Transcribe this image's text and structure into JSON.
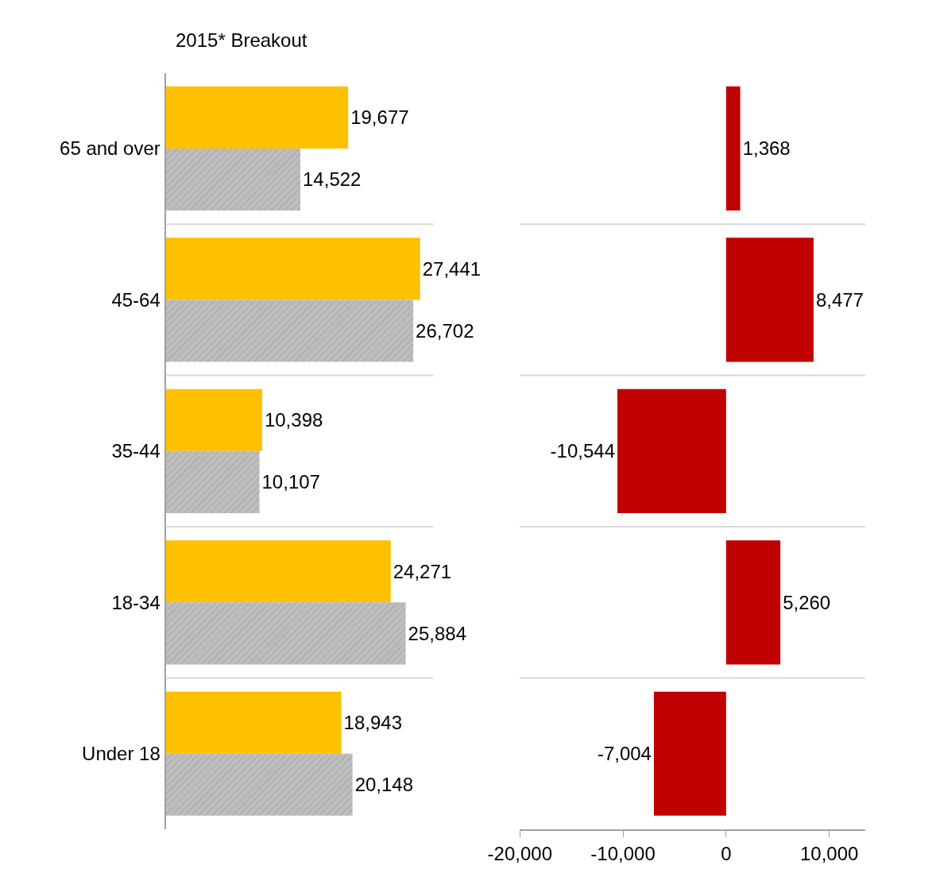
{
  "chart_data": [
    {
      "type": "bar",
      "orientation": "horizontal",
      "title": "2015* Breakout",
      "categories": [
        "65 and over",
        "45-64",
        "35-44",
        "18-34",
        "Under 18"
      ],
      "series": [
        {
          "color": "#ffc000",
          "values": [
            19677,
            27441,
            10398,
            24271,
            18943
          ],
          "value_labels": [
            "19,677",
            "27,441",
            "10,398",
            "24,271",
            "18,943"
          ]
        },
        {
          "color": "#bfbfbf",
          "values": [
            14522,
            26702,
            10107,
            25884,
            20148
          ],
          "value_labels": [
            "14,522",
            "26,702",
            "10,107",
            "25,884",
            "20,148"
          ]
        }
      ],
      "grid": "y",
      "tick_labels": "y"
    },
    {
      "type": "bar",
      "orientation": "horizontal",
      "categories": [
        null,
        null,
        null,
        null,
        null
      ],
      "series": [
        {
          "color": "#c00000",
          "values": [
            1368,
            8477,
            -10544,
            5260,
            -7004
          ],
          "value_labels": [
            "1,368",
            "8,477",
            "-10,544",
            "5,260",
            "-7,004"
          ]
        }
      ],
      "grid": "y",
      "tick_labels": "x",
      "xlim": [
        -20000,
        13500
      ],
      "xticks": [
        {
          "value": -20000,
          "label": "-20,000"
        },
        {
          "value": -10000,
          "label": "-10,000"
        },
        0,
        {
          "value": 10000,
          "label": "10,000"
        }
      ]
    }
  ]
}
